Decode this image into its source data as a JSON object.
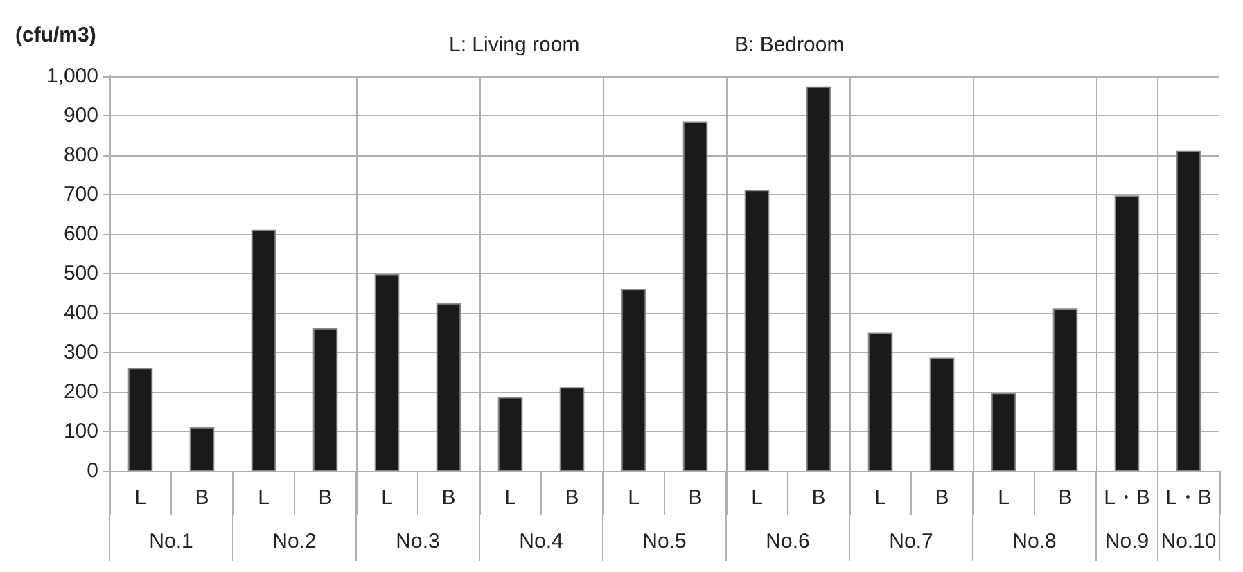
{
  "chart_data": {
    "type": "bar",
    "title": "L: Living room",
    "subtitle": "B: Bedroom",
    "ylabel": "(cfu/m3)",
    "categories": [
      "L",
      "B",
      "L",
      "B",
      "L",
      "B",
      "L",
      "B",
      "L",
      "B",
      "L",
      "B",
      "L",
      "B",
      "L",
      "B",
      "L・B",
      "L・B"
    ],
    "values": [
      261,
      111,
      611,
      362,
      499,
      425,
      187,
      212,
      461,
      885,
      712,
      974,
      350,
      287,
      198,
      412,
      698,
      811
    ],
    "color": "#1a1a1a",
    "annotations": [
      "No.1",
      "No.2",
      "No.3",
      "No.4",
      "No.5",
      "No.6",
      "No.7",
      "No.8",
      "No.9",
      "No.10"
    ],
    "ylim": [
      0,
      1000
    ],
    "yticks": [
      0,
      {
        "value": 100,
        "label": "100"
      },
      200,
      300,
      400,
      500,
      600,
      700,
      800,
      900,
      {
        "value": 1000,
        "label": "1,000"
      }
    ],
    "grid": true
  }
}
